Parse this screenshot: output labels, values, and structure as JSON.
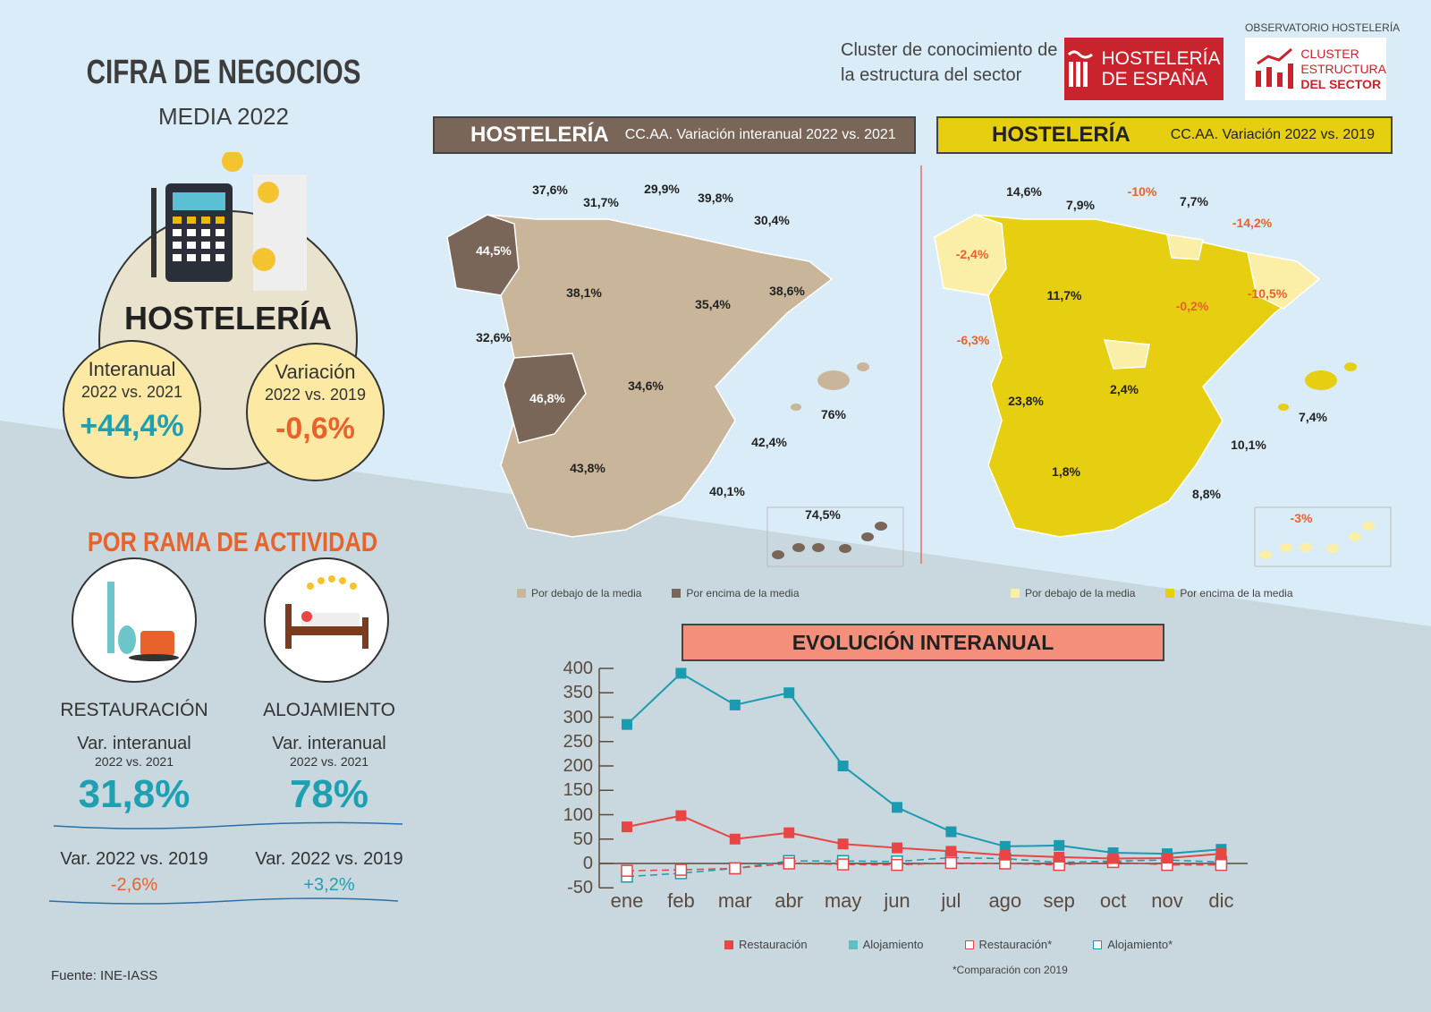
{
  "header": {
    "title": "CIFRA DE NEGOCIOS",
    "subtitle": "MEDIA 2022",
    "cluster_text_1": "Cluster de conocimiento de",
    "cluster_text_2": "la estructura del sector",
    "logo_hosteleria_1": "HOSTELERÍA",
    "logo_hosteleria_2": "DE ESPAÑA",
    "observatorio": "OBSERVATORIO HOSTELERÍA",
    "logo_cluster_1": "CLUSTER",
    "logo_cluster_2": "ESTRUCTURA",
    "logo_cluster_3": "DEL SECTOR"
  },
  "summary": {
    "sector": "HOSTELERÍA",
    "interanual": {
      "label": "Interanual",
      "period": "2022 vs. 2021",
      "value": "+44,4%"
    },
    "variacion": {
      "label": "Variación",
      "period": "2022 vs. 2019",
      "value": "-0,6%"
    }
  },
  "rama": {
    "title": "POR RAMA DE ACTIVIDAD",
    "items": [
      {
        "name": "RESTAURACIÓN",
        "var_label": "Var. interanual",
        "var_period": "2022 vs. 2021",
        "var_value": "31,8%",
        "vs2019_label": "Var. 2022 vs. 2019",
        "vs2019_value": "-2,6%"
      },
      {
        "name": "ALOJAMIENTO",
        "var_label": "Var. interanual",
        "var_period": "2022 vs. 2021",
        "var_value": "78%",
        "vs2019_label": "Var. 2022 vs. 2019",
        "vs2019_value": "+3,2%"
      }
    ]
  },
  "map_left": {
    "title": "HOSTELERÍA",
    "subtitle": "CC.AA. Variación interanual 2022 vs. 2021",
    "labels": [
      "37,6%",
      "31,7%",
      "29,9%",
      "39,8%",
      "30,4%",
      "44,5%",
      "38,1%",
      "35,4%",
      "38,6%",
      "32,6%",
      "46,8%",
      "34,6%",
      "76%",
      "42,4%",
      "43,8%",
      "40,1%",
      "74,5%"
    ],
    "legend": [
      "Por debajo de la media",
      "Por encima de la media"
    ],
    "colors": {
      "below": "#c9b59a",
      "above": "#7a6658"
    }
  },
  "map_right": {
    "title": "HOSTELERÍA",
    "subtitle": "CC.AA. Variación 2022 vs. 2019",
    "labels": [
      "14,6%",
      "7,9%",
      "-10%",
      "7,7%",
      "-14,2%",
      "-2,4%",
      "11,7%",
      "-0,2%",
      "-10,5%",
      "-6,3%",
      "2,4%",
      "23,8%",
      "7,4%",
      "10,1%",
      "1,8%",
      "8,8%",
      "-3%"
    ],
    "legend": [
      "Por debajo de la media",
      "Por encima de la media"
    ],
    "colors": {
      "below": "#fbeea6",
      "above": "#e6cf10"
    }
  },
  "chart_data": {
    "type": "line",
    "title": "EVOLUCIÓN INTERANUAL",
    "categories": [
      "ene",
      "feb",
      "mar",
      "abr",
      "may",
      "jun",
      "jul",
      "ago",
      "sep",
      "oct",
      "nov",
      "dic"
    ],
    "ylim": [
      -50,
      400
    ],
    "yticks": [
      400,
      350,
      300,
      250,
      200,
      150,
      100,
      50,
      0,
      -50
    ],
    "grid": false,
    "legend_position": "bottom",
    "series": [
      {
        "name": "Restauración",
        "color": "#e84545",
        "style": "solid",
        "values": [
          75,
          98,
          50,
          63,
          40,
          32,
          25,
          17,
          13,
          10,
          11,
          20
        ]
      },
      {
        "name": "Alojamiento",
        "color": "#1a9bb0",
        "style": "solid",
        "values": [
          285,
          390,
          325,
          350,
          200,
          115,
          65,
          35,
          37,
          22,
          20,
          29
        ]
      },
      {
        "name": "Restauración*",
        "color": "#e84545",
        "style": "dashed",
        "values": [
          -15,
          -13,
          -10,
          0,
          -2,
          -3,
          1,
          0,
          -3,
          3,
          -3,
          -3
        ]
      },
      {
        "name": "Alojamiento*",
        "color": "#1a9bb0",
        "style": "dashed",
        "values": [
          -27,
          -20,
          -10,
          5,
          5,
          4,
          12,
          10,
          2,
          5,
          7,
          3
        ]
      }
    ],
    "footnote": "*Comparación con 2019"
  },
  "source": "Fuente: INE-IASS"
}
